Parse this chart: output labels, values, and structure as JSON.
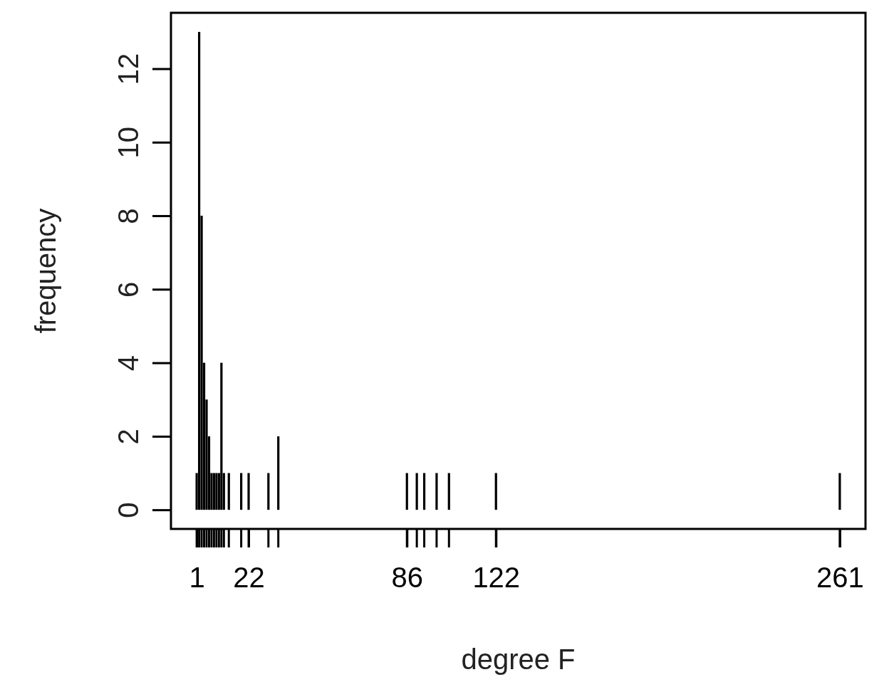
{
  "chart_data": {
    "type": "bar",
    "xlabel": "degree F",
    "ylabel": "frequency",
    "x": [
      1,
      2,
      3,
      4,
      5,
      6,
      7,
      8,
      9,
      10,
      11,
      12,
      14,
      19,
      22,
      30,
      34,
      86,
      90,
      93,
      98,
      103,
      122,
      261
    ],
    "values": [
      1,
      13,
      8,
      4,
      3,
      2,
      1,
      1,
      1,
      1,
      4,
      1,
      1,
      1,
      1,
      1,
      2,
      1,
      1,
      1,
      1,
      1,
      1,
      1
    ],
    "color": "#000000",
    "xlim": [
      -9.4,
      271.4
    ],
    "xticks": [
      1,
      22,
      86,
      122,
      261
    ],
    "ylim": [
      -0.52,
      13.52
    ],
    "yticks": [
      0,
      2,
      4,
      6,
      8,
      10,
      12
    ],
    "grid": false
  }
}
